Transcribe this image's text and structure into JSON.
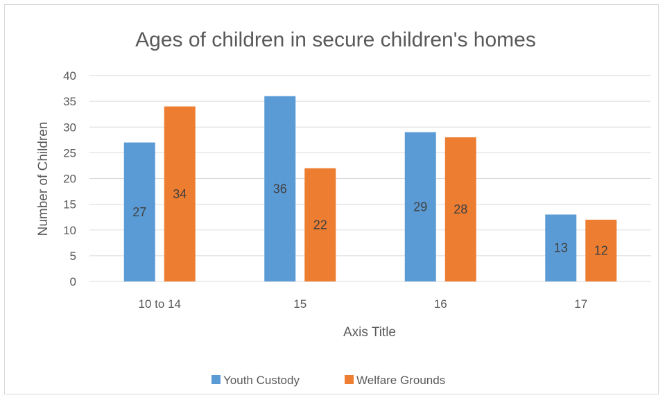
{
  "chart_data": {
    "type": "bar",
    "title": "Ages of children in secure children's homes",
    "xlabel": "Axis Title",
    "ylabel": "Number of Children",
    "categories": [
      "10 to 14",
      "15",
      "16",
      "17"
    ],
    "series": [
      {
        "name": "Youth Custody",
        "values": [
          27,
          36,
          29,
          13
        ],
        "color": "#5b9bd5"
      },
      {
        "name": "Welfare Grounds",
        "values": [
          34,
          22,
          28,
          12
        ],
        "color": "#ed7d31"
      }
    ],
    "ylim": [
      0,
      40
    ],
    "yticks": [
      0,
      5,
      10,
      15,
      20,
      25,
      30,
      35,
      40
    ],
    "grid": true,
    "legend_position": "bottom",
    "gridline_color": "#d9d9d9"
  }
}
